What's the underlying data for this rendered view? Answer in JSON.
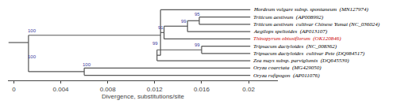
{
  "chart_data": {
    "type": "tree",
    "xlabel": "Divergence, substitutions/site",
    "xlim": [
      -0.0005,
      0.0225
    ],
    "xticks": [
      0,
      0.004,
      0.008,
      0.012,
      0.016,
      0.02
    ],
    "ylim": [
      0.3,
      10.7
    ],
    "tick_labels": "x",
    "grid": false,
    "color": "#555555",
    "branches": [
      {
        "x": [
          -0.00045,
          0.00125
        ],
        "y": [
          5.5,
          5.5
        ]
      },
      {
        "x": [
          0.00125,
          0.00125
        ],
        "y": [
          1.5,
          6.5
        ]
      },
      {
        "x": [
          0.00125,
          0.006
        ],
        "y": [
          1.5,
          1.5
        ]
      },
      {
        "x": [
          0.006,
          0.006
        ],
        "y": [
          1,
          2
        ]
      },
      {
        "x": [
          0.006,
          0.02015
        ],
        "y": [
          1,
          1
        ]
      },
      {
        "x": [
          0.006,
          0.02015
        ],
        "y": [
          2,
          2
        ]
      },
      {
        "x": [
          0.00125,
          0.0125
        ],
        "y": [
          6.5,
          6.5
        ]
      },
      {
        "x": [
          0.0125,
          0.0125
        ],
        "y": [
          3.75,
          10
        ]
      },
      {
        "x": [
          0.0125,
          0.02015
        ],
        "y": [
          10,
          10
        ]
      },
      {
        "x": [
          0.0125,
          0.0128
        ],
        "y": [
          6.875,
          6.875
        ]
      },
      {
        "x": [
          0.0128,
          0.0128
        ],
        "y": [
          6,
          7.75
        ]
      },
      {
        "x": [
          0.0128,
          0.02015
        ],
        "y": [
          6,
          6
        ]
      },
      {
        "x": [
          0.0128,
          0.0148
        ],
        "y": [
          7.75,
          7.75
        ]
      },
      {
        "x": [
          0.0148,
          0.0148
        ],
        "y": [
          7,
          8.5
        ]
      },
      {
        "x": [
          0.0148,
          0.02015
        ],
        "y": [
          7,
          7
        ]
      },
      {
        "x": [
          0.0148,
          0.0158
        ],
        "y": [
          8.5,
          8.5
        ]
      },
      {
        "x": [
          0.0158,
          0.0158
        ],
        "y": [
          8,
          9
        ]
      },
      {
        "x": [
          0.0158,
          0.02015
        ],
        "y": [
          9,
          9
        ]
      },
      {
        "x": [
          0.0158,
          0.02015
        ],
        "y": [
          8,
          8
        ]
      },
      {
        "x": [
          0.0125,
          0.0122
        ],
        "y": [
          3.75,
          3.75
        ]
      },
      {
        "x": [
          0.0122,
          0.0122
        ],
        "y": [
          3,
          4.5
        ]
      },
      {
        "x": [
          0.0122,
          0.02015
        ],
        "y": [
          3,
          3
        ]
      },
      {
        "x": [
          0.0122,
          0.016
        ],
        "y": [
          4.5,
          4.5
        ]
      },
      {
        "x": [
          0.016,
          0.016
        ],
        "y": [
          4,
          5
        ]
      },
      {
        "x": [
          0.016,
          0.02015
        ],
        "y": [
          4,
          4
        ]
      },
      {
        "x": [
          0.016,
          0.02015
        ],
        "y": [
          5,
          5
        ]
      }
    ],
    "taxa": [
      {
        "text": "Hordeum vulgare subsp. spontaneum  (MN127974)",
        "x": 0.02025,
        "y": 10,
        "color": "black"
      },
      {
        "text": "Triticum aestivum  (AP008992)",
        "x": 0.02025,
        "y": 9,
        "color": "black"
      },
      {
        "text": "Triticum aestivum  cultivar Chinese Yumai (NC_036024)",
        "x": 0.02025,
        "y": 8,
        "color": "black"
      },
      {
        "text": "Aegilops speltoides  (AP013107)",
        "x": 0.02025,
        "y": 7,
        "color": "black"
      },
      {
        "text": "Thinopyrum obtusiflorum  (OK120846)",
        "x": 0.02025,
        "y": 6,
        "color": "#cc0000"
      },
      {
        "text": "Tripsacum dactyloides  (NC_008362)",
        "x": 0.02025,
        "y": 5,
        "color": "black"
      },
      {
        "text": "Tripsacum dactyloides  cultivar Pete (DQ984517)",
        "x": 0.02025,
        "y": 4,
        "color": "black"
      },
      {
        "text": "Zea mays subsp. parviglumis  (DQ645539)",
        "x": 0.02025,
        "y": 3,
        "color": "black"
      },
      {
        "text": "Oryza coarctata  (MG429050)",
        "x": 0.02025,
        "y": 2,
        "color": "black"
      },
      {
        "text": "Oryza rufipogon  (AP011076)",
        "x": 0.02025,
        "y": 1,
        "color": "black"
      }
    ],
    "annotations": [
      {
        "text": "100",
        "x": 0.00155,
        "y": 6.55,
        "color": "#4040a0"
      },
      {
        "text": "95",
        "x": 0.0156,
        "y": 8.88,
        "color": "#4040a0"
      },
      {
        "text": "99",
        "x": 0.01445,
        "y": 7.88,
        "color": "#4040a0"
      },
      {
        "text": "91",
        "x": 0.01255,
        "y": 7.05,
        "color": "#4040a0"
      },
      {
        "text": "99",
        "x": 0.01205,
        "y": 4.88,
        "color": "#4040a0"
      },
      {
        "text": "99",
        "x": 0.0156,
        "y": 4.62,
        "color": "#4040a0"
      },
      {
        "text": "100",
        "x": 0.00155,
        "y": 3.05,
        "color": "#4040a0"
      },
      {
        "text": "100",
        "x": 0.0062,
        "y": 1.88,
        "color": "#4040a0"
      }
    ]
  }
}
